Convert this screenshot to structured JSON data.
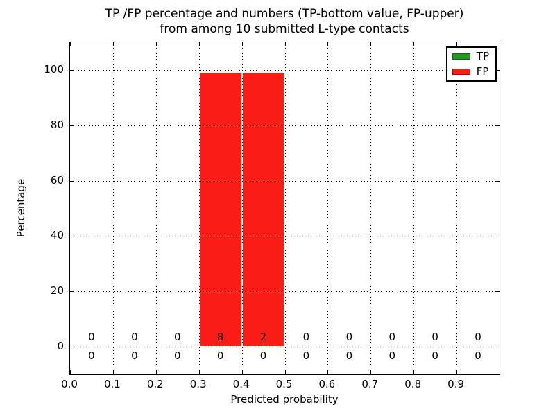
{
  "figure": {
    "title_line1": "TP /FP percentage and numbers (TP-bottom value, FP-upper)",
    "title_line2": "from among 10 submitted L-type contacts",
    "background_color": "#ffffff"
  },
  "legend": {
    "position": "upper right",
    "items": [
      {
        "label": "TP",
        "color": "#229b22"
      },
      {
        "label": "FP",
        "color": "#fa1d15"
      }
    ]
  },
  "chart_data": {
    "type": "bar",
    "stacked": true,
    "title": "TP /FP percentage and numbers (TP-bottom value, FP-upper)\nfrom among 10 submitted L-type contacts",
    "xlabel": "Predicted probability",
    "ylabel": "Percentage",
    "xlim": [
      0.0,
      1.0
    ],
    "ylim": [
      -10,
      110
    ],
    "grid": "dotted, both axes, drawn above bars",
    "legend_position": "upper right",
    "bin_edges": [
      0.0,
      0.1,
      0.2,
      0.3,
      0.4,
      0.5,
      0.6,
      0.7,
      0.8,
      0.9,
      1.0
    ],
    "bin_centers": [
      0.05,
      0.15,
      0.25,
      0.35,
      0.45,
      0.55,
      0.65,
      0.75,
      0.85,
      0.95
    ],
    "xtick_labels": [
      "0.0",
      "0.1",
      "0.2",
      "0.3",
      "0.4",
      "0.5",
      "0.6",
      "0.7",
      "0.8",
      "0.9"
    ],
    "ytick_values": [
      0,
      20,
      40,
      60,
      80,
      100
    ],
    "ytick_labels": [
      "0",
      "20",
      "40",
      "60",
      "80",
      "100"
    ],
    "series": [
      {
        "name": "TP",
        "color": "#229b22",
        "percent": [
          0,
          0,
          0,
          0,
          0,
          0,
          0,
          0,
          0,
          0
        ],
        "counts": [
          0,
          0,
          0,
          0,
          0,
          0,
          0,
          0,
          0,
          0
        ],
        "count_row": "bottom"
      },
      {
        "name": "FP",
        "color": "#fa1d15",
        "percent": [
          0,
          0,
          0,
          100,
          100,
          0,
          0,
          0,
          0,
          0
        ],
        "counts": [
          0,
          0,
          0,
          8,
          2,
          0,
          0,
          0,
          0,
          0
        ],
        "count_row": "top"
      }
    ]
  }
}
